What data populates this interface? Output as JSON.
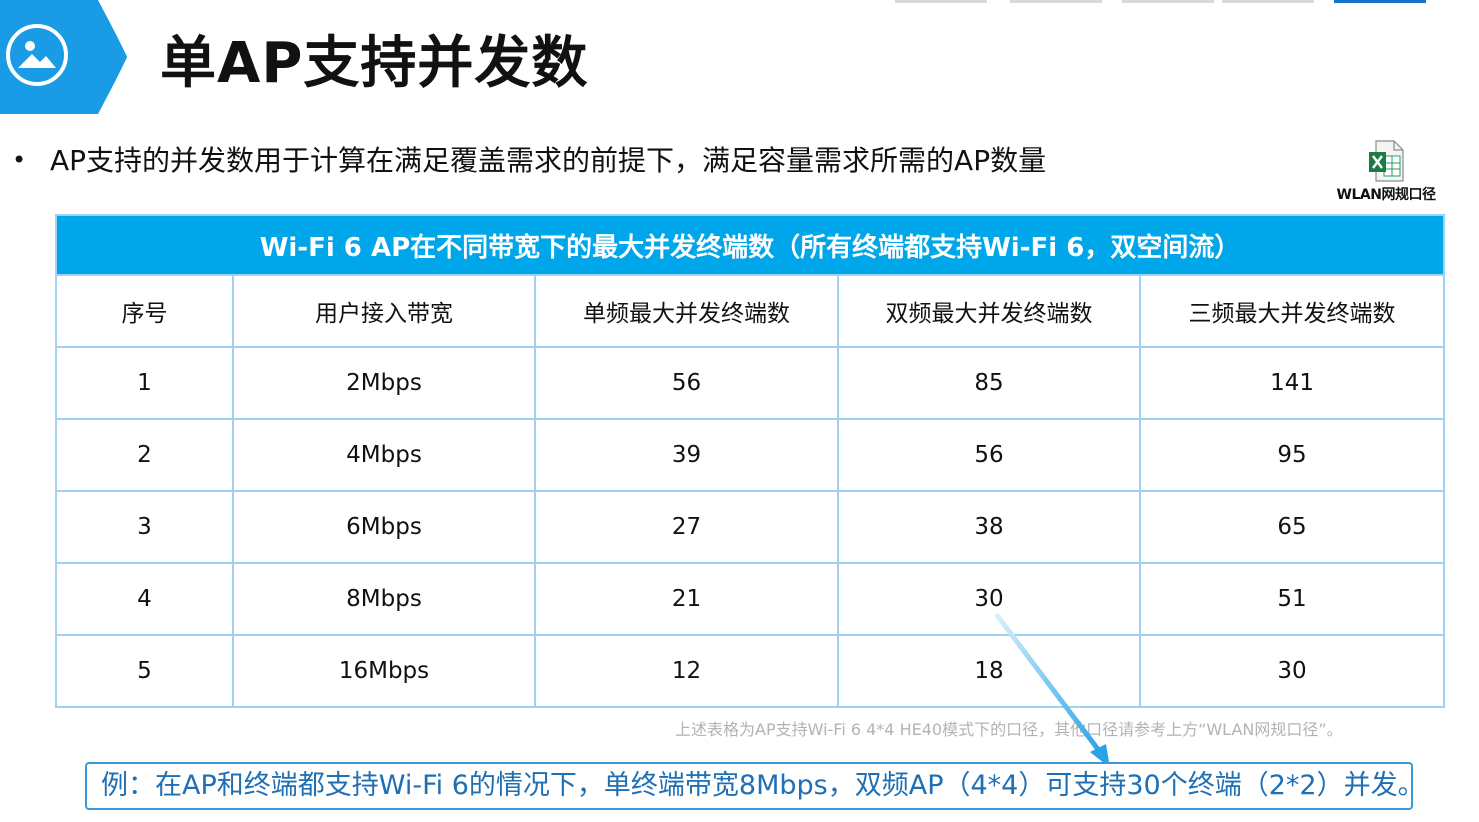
{
  "header": {
    "title": "单AP支持并发数",
    "icon": "image-icon",
    "accent_color": "#1a9be6"
  },
  "bullet": {
    "text": "AP支持的并发数用于计算在满足覆盖需求的前提下，满足容量需求所需的AP数量"
  },
  "attachment": {
    "icon": "excel-file-icon",
    "label": "WLAN网规口径"
  },
  "table": {
    "caption": "Wi-Fi 6 AP在不同带宽下的最大并发终端数（所有终端都支持Wi-Fi 6，双空间流）",
    "columns": [
      "序号",
      "用户接入带宽",
      "单频最大并发终端数",
      "双频最大并发终端数",
      "三频最大并发终端数"
    ],
    "rows": [
      [
        "1",
        "2Mbps",
        "56",
        "85",
        "141"
      ],
      [
        "2",
        "4Mbps",
        "39",
        "56",
        "95"
      ],
      [
        "3",
        "6Mbps",
        "27",
        "38",
        "65"
      ],
      [
        "4",
        "8Mbps",
        "21",
        "30",
        "51"
      ],
      [
        "5",
        "16Mbps",
        "12",
        "18",
        "30"
      ]
    ],
    "header_color": "#00a6ea",
    "border_color": "#9ed2f0"
  },
  "note": "上述表格为AP支持Wi-Fi 6 4*4 HE40模式下的口径，其他口径请参考上方“WLAN网规口径”。",
  "example": "例：在AP和终端都支持Wi-Fi 6的情况下，单终端带宽8Mbps，双频AP（4*4）可支持30个终端（2*2）并发。"
}
